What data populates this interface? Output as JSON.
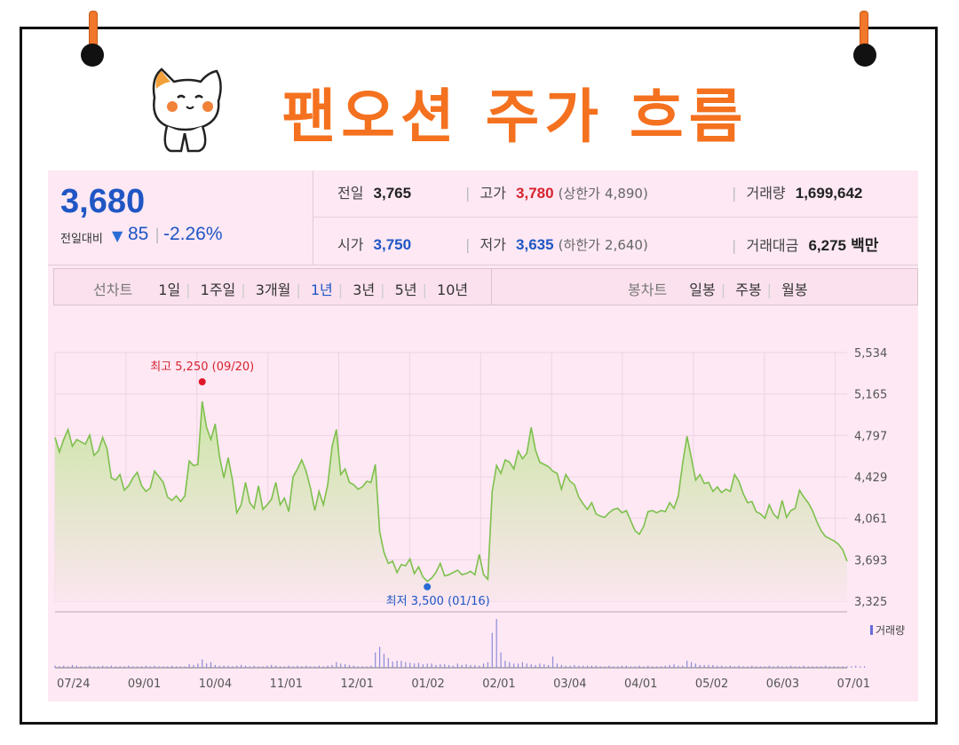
{
  "title": "팬오션 주가 흐름",
  "colors": {
    "title": "#f4711f",
    "up": "#d6242e",
    "down": "#1f56c4",
    "line": "#7ec04d"
  },
  "summary": {
    "price": "3,680",
    "change_label": "전일대비",
    "change_icon": "down-triangle-icon",
    "change_value": "85",
    "change_pct": "-2.26%",
    "prev_label": "전일",
    "prev": "3,765",
    "high_label": "고가",
    "high": "3,780",
    "upper_label": "(상한가",
    "upper": "4,890)",
    "volume_label": "거래량",
    "volume": "1,699,642",
    "open_label": "시가",
    "open": "3,750",
    "low_label": "저가",
    "low": "3,635",
    "lower_label": "(하한가",
    "lower": "2,640)",
    "value_label": "거래대금",
    "value": "6,275",
    "value_unit": "백만"
  },
  "toolbar": {
    "line_label": "선차트",
    "periods": [
      "1일",
      "1주일",
      "3개월",
      "1년",
      "3년",
      "5년",
      "10년"
    ],
    "selected_period": "1년",
    "candle_label": "봉차트",
    "candles": [
      "일봉",
      "주봉",
      "월봉"
    ]
  },
  "chart_data": {
    "type": "area",
    "y_ticks": [
      "5,534",
      "5,165",
      "4,797",
      "4,429",
      "4,061",
      "3,693",
      "3,325"
    ],
    "ylim": [
      3325,
      5534
    ],
    "x_ticks": [
      "07/24",
      "09/01",
      "10/04",
      "11/01",
      "12/01",
      "01/02",
      "02/01",
      "03/04",
      "04/01",
      "05/02",
      "06/03",
      "07/01"
    ],
    "max_annotation": "최고 5,250 (09/20)",
    "min_annotation": "최저 3,500 (01/16)",
    "volume_label": "거래량",
    "grid": true,
    "series": [
      {
        "values": [
          4780,
          4650,
          4760,
          4850,
          4700,
          4760,
          4740,
          4720,
          4800,
          4620,
          4660,
          4780,
          4680,
          4420,
          4400,
          4450,
          4310,
          4350,
          4420,
          4470,
          4350,
          4300,
          4330,
          4480,
          4430,
          4380,
          4250,
          4220,
          4260,
          4210,
          4260,
          4570,
          4530,
          4540,
          5100,
          4870,
          4760,
          4900,
          4610,
          4420,
          4600,
          4400,
          4110,
          4180,
          4380,
          4200,
          4150,
          4350,
          4140,
          4180,
          4230,
          4380,
          4180,
          4240,
          4120,
          4430,
          4500,
          4580,
          4480,
          4330,
          4130,
          4300,
          4180,
          4360,
          4700,
          4850,
          4450,
          4500,
          4380,
          4360,
          4320,
          4340,
          4390,
          4380,
          4540,
          3940,
          3760,
          3660,
          3680,
          3580,
          3650,
          3640,
          3700,
          3570,
          3630,
          3540,
          3500,
          3530,
          3580,
          3660,
          3550,
          3560,
          3580,
          3600,
          3560,
          3570,
          3590,
          3560,
          3740,
          3560,
          3520,
          4300,
          4530,
          4460,
          4580,
          4560,
          4500,
          4660,
          4590,
          4640,
          4870,
          4670,
          4560,
          4540,
          4520,
          4480,
          4460,
          4320,
          4450,
          4390,
          4360,
          4250,
          4190,
          4140,
          4200,
          4100,
          4080,
          4070,
          4110,
          4140,
          4150,
          4110,
          4130,
          4040,
          3950,
          3920,
          3990,
          4120,
          4130,
          4110,
          4130,
          4120,
          4200,
          4150,
          4260,
          4550,
          4790,
          4600,
          4400,
          4450,
          4370,
          4380,
          4300,
          4340,
          4290,
          4320,
          4300,
          4450,
          4390,
          4280,
          4200,
          4210,
          4120,
          4100,
          4060,
          4180,
          4100,
          4060,
          4220,
          4070,
          4130,
          4150,
          4310,
          4250,
          4200,
          4130,
          4030,
          3950,
          3900,
          3880,
          3860,
          3830,
          3780,
          3680
        ],
        "max_index": 34,
        "min_index": 86
      }
    ],
    "volume": [
      3,
      2,
      3,
      2,
      4,
      3,
      2,
      2,
      3,
      2,
      2,
      3,
      2,
      3,
      2,
      2,
      2,
      3,
      2,
      2,
      2,
      3,
      2,
      3,
      2,
      2,
      2,
      3,
      2,
      2,
      2,
      5,
      4,
      6,
      12,
      6,
      8,
      4,
      3,
      3,
      3,
      2,
      3,
      4,
      3,
      2,
      3,
      2,
      2,
      3,
      4,
      3,
      2,
      2,
      3,
      2,
      3,
      2,
      3,
      2,
      2,
      3,
      2,
      3,
      4,
      8,
      6,
      5,
      4,
      3,
      2,
      2,
      2,
      3,
      22,
      30,
      20,
      14,
      9,
      10,
      10,
      8,
      7,
      6,
      7,
      5,
      6,
      6,
      4,
      5,
      5,
      4,
      3,
      6,
      4,
      5,
      4,
      4,
      3,
      6,
      8,
      50,
      70,
      22,
      10,
      8,
      6,
      6,
      8,
      6,
      5,
      4,
      6,
      5,
      4,
      16,
      6,
      4,
      3,
      3,
      4,
      3,
      3,
      3,
      3,
      3,
      2,
      2,
      3,
      2,
      2,
      3,
      3,
      2,
      2,
      3,
      2,
      3,
      2,
      2,
      2,
      3,
      4,
      5,
      3,
      3,
      10,
      8,
      6,
      4,
      4,
      4,
      4,
      3,
      3,
      2,
      3,
      2,
      3,
      2,
      2,
      3,
      2,
      2,
      2,
      3,
      2,
      3,
      2,
      2,
      3,
      2,
      2,
      3,
      2,
      2,
      2,
      2,
      3,
      2,
      2,
      2,
      2,
      2,
      2,
      3,
      2,
      2
    ]
  }
}
